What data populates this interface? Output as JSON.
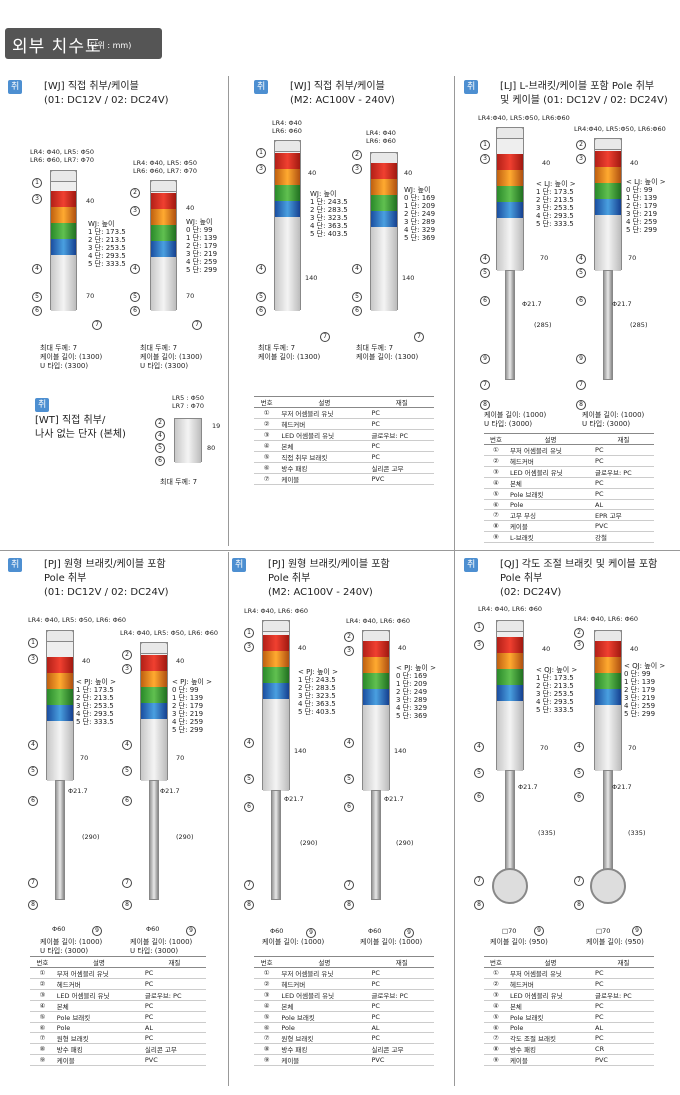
{
  "header": {
    "title": "외부 치수도",
    "unit": "(단위 : mm)"
  },
  "s1": {
    "badge": "취부 A",
    "title1": "[WJ] 직접 취부/케이블",
    "title2": "(01: DC12V / 02: DC24V)",
    "lr_a1": "LR4: Φ40, LR5: Φ50",
    "lr_a2": "LR6: Φ60, LR7: Φ70",
    "lr_b1": "LR4: Φ40, LR5: Φ50",
    "lr_b2": "LR6: Φ60, LR7: Φ70",
    "h_a": [
      "WJ: 높이",
      "1 단: 173.5",
      "2 단: 213.5",
      "3 단: 253.5",
      "4 단: 293.5",
      "5 단: 333.5"
    ],
    "h_b": [
      "WJ: 높이",
      "0 단: 99",
      "1 단: 139",
      "2 단: 179",
      "3 단: 219",
      "4 단: 259",
      "5 단: 299"
    ],
    "d40": "40",
    "d70": "70",
    "foot_a": [
      "최대 두께: 7",
      "케이블 길이: (1300)",
      "U 타입: (3300)"
    ],
    "foot_b": [
      "최대 두께: 7",
      "케이블 길이: (1300)",
      "U 타입: (3300)"
    ]
  },
  "s1b": {
    "badge": "취부 A",
    "title1": "[WT] 직접 취부/",
    "title2": "나사 없는 단자 (본체)",
    "lr1": "LR5 : Φ50",
    "lr2": "LR7 : Φ70",
    "d19": "19",
    "d80": "80",
    "foot": "최대 두께: 7"
  },
  "s2": {
    "badge": "취부 A",
    "title1": "[WJ] 직접 취부/케이블",
    "title2": "(M2: AC100V - 240V)",
    "lr_a1": "LR4: Φ40",
    "lr_a2": "LR6: Φ60",
    "lr_b1": "LR4: Φ40",
    "lr_b2": "LR6: Φ60",
    "h_a": [
      "WJ: 높이",
      "1 단: 243.5",
      "2 단: 283.5",
      "3 단: 323.5",
      "4 단: 363.5",
      "5 단: 403.5"
    ],
    "h_b": [
      "WJ: 높이",
      "0 단: 169",
      "1 단: 209",
      "2 단: 249",
      "3 단: 289",
      "4 단: 329",
      "5 단: 369"
    ],
    "d140": "140",
    "foot_a": [
      "최대 두께: 7",
      "케이블 길이: (1300)"
    ],
    "foot_b": [
      "최대 두께: 7",
      "케이블 길이: (1300)"
    ],
    "table": {
      "head": [
        "번호",
        "설명",
        "재질"
      ],
      "rows": [
        [
          "①",
          "부저 어셈블리 유닛",
          "PC"
        ],
        [
          "②",
          "헤드커버",
          "PC"
        ],
        [
          "③",
          "LED 어셈블리 유닛",
          "글로우브: PC"
        ],
        [
          "④",
          "본체",
          "PC"
        ],
        [
          "⑤",
          "직접 취부 브래킷",
          "PC"
        ],
        [
          "⑥",
          "방수 패킹",
          "실리콘 고무"
        ],
        [
          "⑦",
          "케이블",
          "PVC"
        ]
      ]
    }
  },
  "s3": {
    "badge": "취부 B",
    "title1": "[LJ] L-브래킷/케이블 포함 Pole 취부",
    "title2": "및 케이블 (01: DC12V / 02: DC24V)",
    "lr_a": "LR4:Φ40, LR5:Φ50, LR6:Φ60",
    "lr_b": "LR4:Φ40, LR5:Φ50, LR6:Φ60",
    "h_a": [
      "< LJ: 높이 >",
      "1 단: 173.5",
      "2 단: 213.5",
      "3 단: 253.5",
      "4 단: 293.5",
      "5 단: 333.5"
    ],
    "h_b": [
      "< LJ: 높이 >",
      "0 단: 99",
      "1 단: 139",
      "2 단: 179",
      "3 단: 219",
      "4 단: 259",
      "5 단: 299"
    ],
    "phi": "Φ21.7",
    "len": "(285)",
    "foot_a": [
      "케이블 길이: (1000)",
      "U 타입: (3000)"
    ],
    "foot_b": [
      "케이블 길이: (1000)",
      "U 타입: (3000)"
    ],
    "table": {
      "head": [
        "번호",
        "설명",
        "재질"
      ],
      "rows": [
        [
          "①",
          "부저 어셈블리 유닛",
          "PC"
        ],
        [
          "②",
          "헤드커버",
          "PC"
        ],
        [
          "③",
          "LED 어셈블리 유닛",
          "글로우브: PC"
        ],
        [
          "④",
          "본체",
          "PC"
        ],
        [
          "⑤",
          "Pole 브래킷",
          "PC"
        ],
        [
          "⑥",
          "Pole",
          "AL"
        ],
        [
          "⑦",
          "고무 부싱",
          "EPR 고무"
        ],
        [
          "⑧",
          "케이블",
          "PVC"
        ],
        [
          "⑨",
          "L-브래킷",
          "강철"
        ]
      ]
    }
  },
  "s4": {
    "badge": "취부 A",
    "title1": "[PJ] 원형 브래킷/케이블 포함",
    "title2": "Pole 취부",
    "title3": "(01: DC12V / 02: DC24V)",
    "lr_a": "LR4: Φ40, LR5: Φ50, LR6: Φ60",
    "lr_b": "LR4: Φ40, LR5: Φ50, LR6: Φ60",
    "h_a": [
      "< PJ: 높이 >",
      "1 단: 173.5",
      "2 단: 213.5",
      "3 단: 253.5",
      "4 단: 293.5",
      "5 단: 333.5"
    ],
    "h_b": [
      "< PJ: 높이 >",
      "0 단: 99",
      "1 단: 139",
      "2 단: 179",
      "3 단: 219",
      "4 단: 259",
      "5 단: 299"
    ],
    "len": "(290)",
    "base": "Φ60",
    "foot_a": [
      "케이블 길이: (1000)",
      "U 타입: (3000)"
    ],
    "foot_b": [
      "케이블 길이: (1000)",
      "U 타입: (3000)"
    ],
    "table": {
      "head": [
        "번호",
        "설명",
        "재질"
      ],
      "rows": [
        [
          "①",
          "부저 어셈블리 유닛",
          "PC"
        ],
        [
          "②",
          "헤드커버",
          "PC"
        ],
        [
          "③",
          "LED 어셈블리 유닛",
          "글로우브: PC"
        ],
        [
          "④",
          "본체",
          "PC"
        ],
        [
          "⑤",
          "Pole 브래킷",
          "PC"
        ],
        [
          "⑥",
          "Pole",
          "AL"
        ],
        [
          "⑦",
          "원형 브래킷",
          "PC"
        ],
        [
          "⑧",
          "방수 패킹",
          "실리콘 고무"
        ],
        [
          "⑨",
          "케이블",
          "PVC"
        ]
      ]
    }
  },
  "s5": {
    "badge": "취부 A",
    "title1": "[PJ] 원형 브래킷/케이블 포함",
    "title2": "Pole 취부",
    "title3": "(M2: AC100V - 240V)",
    "lr_a": "LR4: Φ40, LR6: Φ60",
    "lr_b": "LR4: Φ40, LR6: Φ60",
    "h_a": [
      "< PJ: 높이 >",
      "1 단: 243.5",
      "2 단: 283.5",
      "3 단: 323.5",
      "4 단: 363.5",
      "5 단: 403.5"
    ],
    "h_b": [
      "< PJ: 높이 >",
      "0 단: 169",
      "1 단: 209",
      "2 단: 249",
      "3 단: 289",
      "4 단: 329",
      "5 단: 369"
    ],
    "foot_a": [
      "케이블 길이: (1000)"
    ],
    "foot_b": [
      "케이블 길이: (1000)"
    ],
    "table": {
      "head": [
        "번호",
        "설명",
        "재질"
      ],
      "rows": [
        [
          "①",
          "부저 어셈블리 유닛",
          "PC"
        ],
        [
          "②",
          "헤드커버",
          "PC"
        ],
        [
          "③",
          "LED 어셈블리 유닛",
          "글로우브: PC"
        ],
        [
          "④",
          "본체",
          "PC"
        ],
        [
          "⑤",
          "Pole 브래킷",
          "PC"
        ],
        [
          "⑥",
          "Pole",
          "AL"
        ],
        [
          "⑦",
          "원형 브래킷",
          "PC"
        ],
        [
          "⑧",
          "방수 패킹",
          "실리콘 고무"
        ],
        [
          "⑨",
          "케이블",
          "PVC"
        ]
      ]
    }
  },
  "s6": {
    "badge": "취부 C",
    "title1": "[QJ] 각도 조절 브래킷 및 케이블 포함",
    "title2": "Pole 취부",
    "title3": "(02: DC24V)",
    "lr_a": "LR4: Φ40, LR6: Φ60",
    "lr_b": "LR4: Φ40, LR6: Φ60",
    "h_a": [
      "< QJ: 높이 >",
      "1 단: 173.5",
      "2 단: 213.5",
      "3 단: 253.5",
      "4 단: 293.5",
      "5 단: 333.5"
    ],
    "h_b": [
      "< QJ: 높이 >",
      "0 단: 99",
      "1 단: 139",
      "2 단: 179",
      "3 단: 219",
      "4 단: 259",
      "5 단: 299"
    ],
    "len": "(335)",
    "base": "□70",
    "foot_a": [
      "케이블 길이: (950)"
    ],
    "foot_b": [
      "케이블 길이: (950)"
    ],
    "table": {
      "head": [
        "번호",
        "설명",
        "재질"
      ],
      "rows": [
        [
          "①",
          "부저 어셈블리 유닛",
          "PC"
        ],
        [
          "②",
          "헤드커버",
          "PC"
        ],
        [
          "③",
          "LED 어셈블리 유닛",
          "글로우브: PC"
        ],
        [
          "④",
          "본체",
          "PC"
        ],
        [
          "⑤",
          "Pole 브래킷",
          "PC"
        ],
        [
          "⑥",
          "Pole",
          "AL"
        ],
        [
          "⑦",
          "각도 조절 브래킷",
          "PC"
        ],
        [
          "⑧",
          "방수 패킹",
          "CR"
        ],
        [
          "⑨",
          "케이블",
          "PVC"
        ]
      ]
    }
  }
}
